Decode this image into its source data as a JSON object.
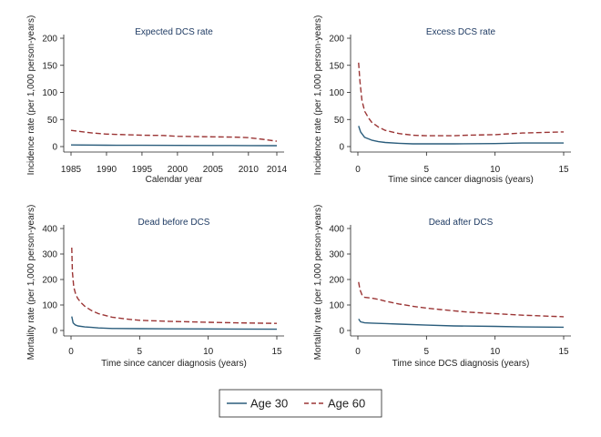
{
  "colors": {
    "age30": "#2b5d7c",
    "age60": "#9b3535",
    "axis": "#222222",
    "title": "#1f3b63"
  },
  "legend": {
    "items": [
      {
        "label": "Age 30",
        "style": "solid",
        "color": "#2b5d7c"
      },
      {
        "label": "Age 60",
        "style": "dashed",
        "color": "#9b3535"
      }
    ]
  },
  "chart_data": [
    {
      "type": "line",
      "title": "Expected DCS rate",
      "xlabel": "Calendar year",
      "ylabel": "Incidence rate (per 1,000 person-years)",
      "xlim": [
        1985,
        2014
      ],
      "ylim": [
        0,
        200
      ],
      "xticks": [
        1985,
        1990,
        1995,
        2000,
        2005,
        2010,
        2014
      ],
      "yticks": [
        0,
        50,
        100,
        150,
        200
      ],
      "series": [
        {
          "name": "Age 30",
          "x": [
            1985,
            1990,
            1995,
            2000,
            2005,
            2010,
            2014
          ],
          "y": [
            3,
            2.5,
            2.3,
            2.2,
            2,
            1.8,
            1.6
          ]
        },
        {
          "name": "Age 60",
          "x": [
            1985,
            1988,
            1990,
            1995,
            1998,
            2000,
            2005,
            2008,
            2010,
            2012,
            2014
          ],
          "y": [
            30,
            25,
            23,
            21,
            20.5,
            19,
            18,
            17.5,
            16.5,
            13.5,
            10
          ]
        }
      ]
    },
    {
      "type": "line",
      "title": "Excess DCS rate",
      "xlabel": "Time since cancer diagnosis (years)",
      "ylabel": "Incidence rate (per 1,000 person-years)",
      "xlim": [
        0,
        15
      ],
      "ylim": [
        0,
        200
      ],
      "xticks": [
        0,
        5,
        10,
        15
      ],
      "yticks": [
        0,
        50,
        100,
        150,
        200
      ],
      "series": [
        {
          "name": "Age 30",
          "x": [
            0.05,
            0.2,
            0.5,
            1,
            1.5,
            2,
            3,
            4,
            5,
            7,
            10,
            12,
            15
          ],
          "y": [
            38,
            27,
            17,
            12,
            9,
            7.5,
            6,
            5,
            5,
            5,
            5.5,
            6.5,
            6.5
          ]
        },
        {
          "name": "Age 60",
          "x": [
            0.05,
            0.15,
            0.3,
            0.5,
            0.8,
            1,
            1.5,
            2,
            3,
            4,
            5,
            6,
            7,
            8,
            10,
            12,
            15
          ],
          "y": [
            155,
            120,
            85,
            65,
            52,
            45,
            36,
            30,
            24,
            21,
            20,
            20,
            20,
            21,
            22,
            25,
            27
          ]
        }
      ]
    },
    {
      "type": "line",
      "title": "Dead before DCS",
      "xlabel": "Time since cancer diagnosis (years)",
      "ylabel": "Mortality rate (per 1,000 person-years)",
      "xlim": [
        0,
        15
      ],
      "ylim": [
        0,
        400
      ],
      "xticks": [
        0,
        5,
        10,
        15
      ],
      "yticks": [
        0,
        100,
        200,
        300,
        400
      ],
      "series": [
        {
          "name": "Age 30",
          "x": [
            0.05,
            0.15,
            0.3,
            0.5,
            1,
            1.5,
            2,
            3,
            5,
            7,
            10,
            15
          ],
          "y": [
            55,
            30,
            22,
            18,
            14,
            12,
            10,
            8,
            7,
            6.5,
            6,
            5
          ]
        },
        {
          "name": "Age 60",
          "x": [
            0.05,
            0.1,
            0.2,
            0.35,
            0.5,
            0.75,
            1,
            1.5,
            2,
            3,
            4,
            5,
            7,
            10,
            12,
            15
          ],
          "y": [
            325,
            230,
            170,
            140,
            125,
            108,
            95,
            78,
            66,
            52,
            45,
            40,
            36,
            32,
            30,
            28
          ]
        }
      ]
    },
    {
      "type": "line",
      "title": "Dead after DCS",
      "xlabel": "Time since DCS diagnosis (years)",
      "ylabel": "Mortality rate (per 1,000 person-years)",
      "xlim": [
        0,
        15
      ],
      "ylim": [
        0,
        400
      ],
      "xticks": [
        0,
        5,
        10,
        15
      ],
      "yticks": [
        0,
        100,
        200,
        300,
        400
      ],
      "series": [
        {
          "name": "Age 30",
          "x": [
            0.05,
            0.2,
            0.5,
            1,
            2,
            3,
            5,
            7,
            10,
            12,
            15
          ],
          "y": [
            45,
            34,
            30,
            29,
            27,
            25,
            21,
            18,
            16,
            14,
            13
          ]
        },
        {
          "name": "Age 60",
          "x": [
            0.05,
            0.15,
            0.3,
            0.5,
            1,
            1.5,
            2,
            3,
            4,
            5,
            6,
            7,
            8,
            10,
            12,
            15
          ],
          "y": [
            190,
            160,
            140,
            130,
            127,
            122,
            115,
            104,
            95,
            88,
            82,
            77,
            72,
            66,
            60,
            54
          ]
        }
      ]
    }
  ]
}
